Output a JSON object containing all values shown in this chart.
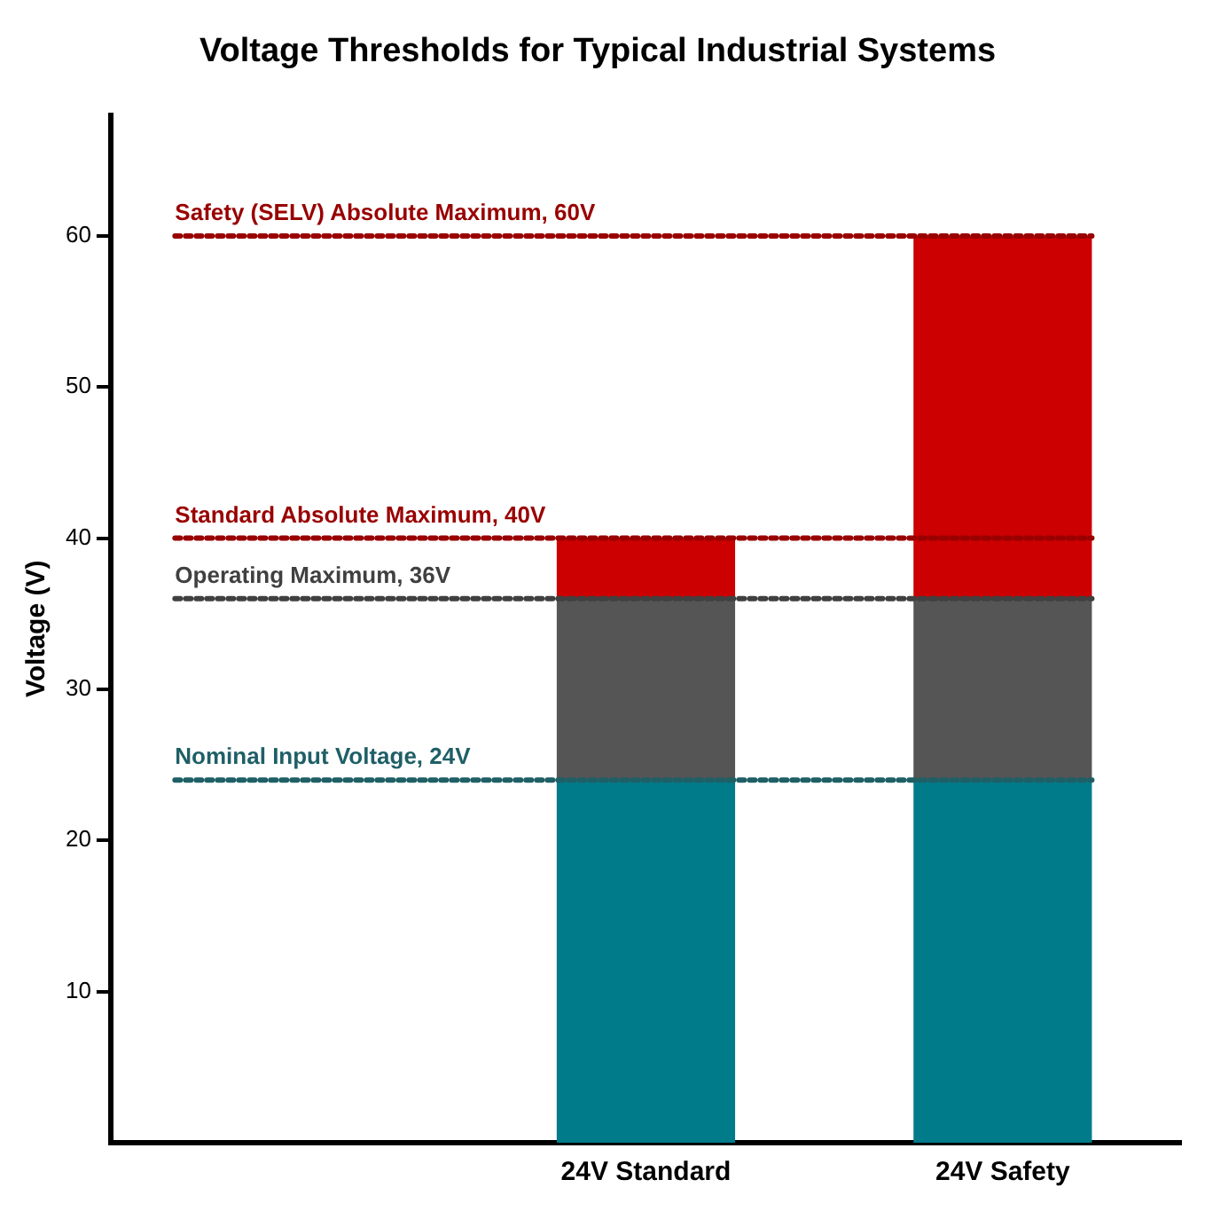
{
  "chart_data": {
    "type": "bar",
    "title": "Voltage Thresholds for Typical Industrial Systems",
    "ylabel": "Voltage (V)",
    "categories": [
      null,
      "24V Standard",
      "24V Safety"
    ],
    "stacked": true,
    "series": [
      {
        "color": "#007b8a",
        "values": [
          null,
          24,
          24
        ]
      },
      {
        "color": "#555555",
        "values": [
          null,
          12,
          12
        ]
      },
      {
        "color": "#cc0000",
        "values": [
          null,
          4,
          24
        ]
      }
    ],
    "ylim": [
      0,
      68
    ],
    "yticks": [
      10,
      20,
      30,
      40,
      50,
      60
    ],
    "grid": false,
    "legend": false,
    "ref_lines": [
      {
        "axis": "y",
        "value": 60,
        "label": "Safety (SELV) Absolute Maximum, 60V",
        "color": "#990000",
        "line_style": "dotted"
      },
      {
        "axis": "y",
        "value": 40,
        "label": "Standard Absolute Maximum, 40V",
        "color": "#990000",
        "line_style": "dotted"
      },
      {
        "axis": "y",
        "value": 36,
        "label": "Operating Maximum, 36V",
        "color": "#404040",
        "line_style": "dotted"
      },
      {
        "axis": "y",
        "value": 24,
        "label": "Nominal Input Voltage, 24V",
        "color": "#1f5f66",
        "line_style": "dotted"
      }
    ]
  }
}
